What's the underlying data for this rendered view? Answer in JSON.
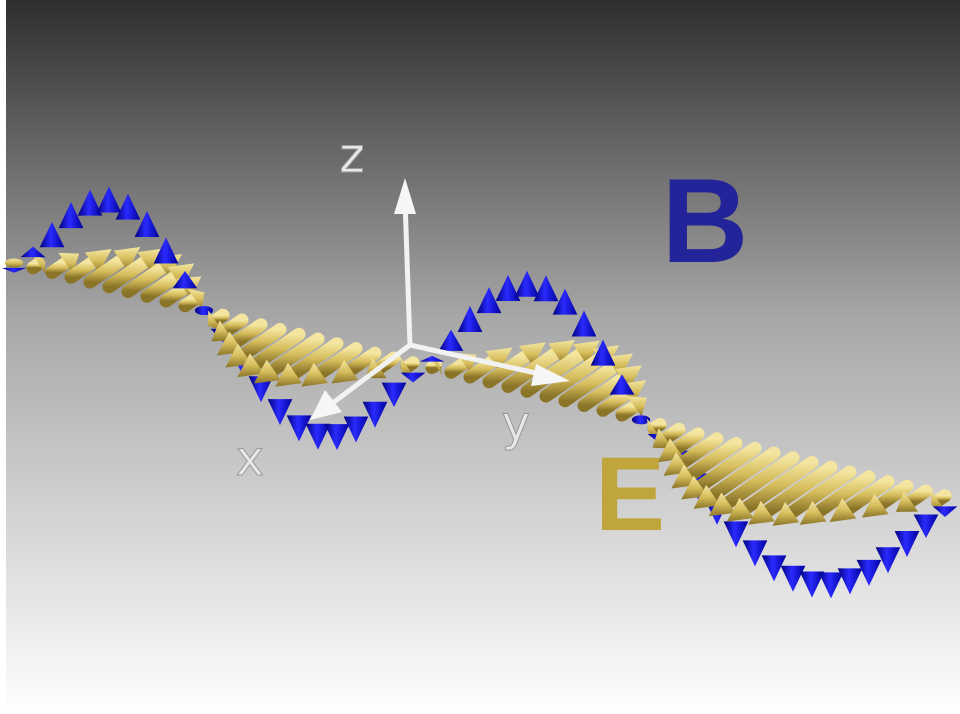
{
  "labels": {
    "z": "z",
    "y": "y",
    "x": "x",
    "B": "B",
    "E": "E"
  }
}
